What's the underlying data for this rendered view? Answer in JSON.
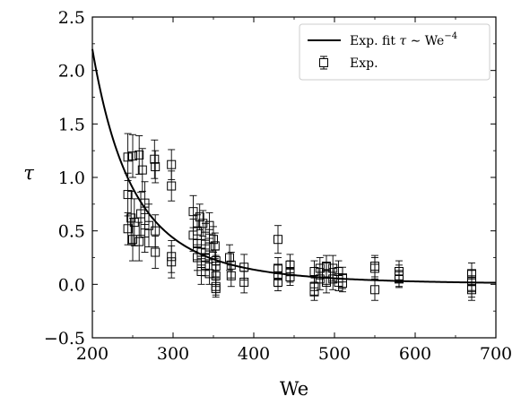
{
  "chart_data": {
    "type": "scatter",
    "title": "",
    "xlabel": "We",
    "ylabel": "τ",
    "xlim": [
      200,
      700
    ],
    "ylim": [
      -0.5,
      2.5
    ],
    "xticks": [
      200,
      300,
      400,
      500,
      600,
      700
    ],
    "yticks": [
      -0.5,
      0.0,
      0.5,
      1.0,
      1.5,
      2.0,
      2.5
    ],
    "xtick_labels": [
      "200",
      "300",
      "400",
      "500",
      "600",
      "700"
    ],
    "ytick_labels": [
      "−0.5",
      "0.0",
      "0.5",
      "1.0",
      "1.5",
      "2.0",
      "2.5"
    ],
    "grid": false,
    "legend_position": "top-right",
    "legend": [
      {
        "label_main": "Exp. fit ",
        "label_tau": "τ",
        "label_sim": " ∼ We",
        "label_exp": "−4",
        "kind": "line"
      },
      {
        "label": "Exp.",
        "kind": "errorbar-square"
      }
    ],
    "fit_curve": {
      "name": "Exp. fit",
      "formula": "tau = 2.2 * (We/200)^-4",
      "coefficient": 2.2,
      "exponent": -4,
      "color": "#000000"
    },
    "series": [
      {
        "name": "Exp.",
        "marker": "open-square",
        "color": "#000000",
        "points": [
          {
            "x": 244,
            "y": 1.19,
            "err": 0.22
          },
          {
            "x": 250,
            "y": 1.2,
            "err": 0.2
          },
          {
            "x": 258,
            "y": 1.21,
            "err": 0.18
          },
          {
            "x": 262,
            "y": 1.07,
            "err": 0.2
          },
          {
            "x": 277,
            "y": 1.17,
            "err": 0.18
          },
          {
            "x": 278,
            "y": 1.1,
            "err": 0.15
          },
          {
            "x": 298,
            "y": 1.12,
            "err": 0.14
          },
          {
            "x": 298,
            "y": 0.92,
            "err": 0.14
          },
          {
            "x": 244,
            "y": 0.84,
            "err": 0.2
          },
          {
            "x": 248,
            "y": 0.62,
            "err": 0.25
          },
          {
            "x": 252,
            "y": 0.58,
            "err": 0.22
          },
          {
            "x": 260,
            "y": 0.66,
            "err": 0.2
          },
          {
            "x": 265,
            "y": 0.76,
            "err": 0.2
          },
          {
            "x": 270,
            "y": 0.55,
            "err": 0.2
          },
          {
            "x": 244,
            "y": 0.52,
            "err": 0.15
          },
          {
            "x": 250,
            "y": 0.42,
            "err": 0.2
          },
          {
            "x": 258,
            "y": 0.4,
            "err": 0.18
          },
          {
            "x": 265,
            "y": 0.48,
            "err": 0.18
          },
          {
            "x": 278,
            "y": 0.5,
            "err": 0.15
          },
          {
            "x": 278,
            "y": 0.3,
            "err": 0.15
          },
          {
            "x": 298,
            "y": 0.26,
            "err": 0.15
          },
          {
            "x": 298,
            "y": 0.21,
            "err": 0.15
          },
          {
            "x": 325,
            "y": 0.68,
            "err": 0.15
          },
          {
            "x": 330,
            "y": 0.5,
            "err": 0.15
          },
          {
            "x": 333,
            "y": 0.63,
            "err": 0.12
          },
          {
            "x": 337,
            "y": 0.57,
            "err": 0.12
          },
          {
            "x": 340,
            "y": 0.45,
            "err": 0.12
          },
          {
            "x": 345,
            "y": 0.55,
            "err": 0.12
          },
          {
            "x": 325,
            "y": 0.46,
            "err": 0.15
          },
          {
            "x": 330,
            "y": 0.38,
            "err": 0.15
          },
          {
            "x": 335,
            "y": 0.3,
            "err": 0.12
          },
          {
            "x": 340,
            "y": 0.25,
            "err": 0.12
          },
          {
            "x": 345,
            "y": 0.35,
            "err": 0.12
          },
          {
            "x": 350,
            "y": 0.42,
            "err": 0.12
          },
          {
            "x": 352,
            "y": 0.36,
            "err": 0.12
          },
          {
            "x": 353,
            "y": 0.22,
            "err": 0.1
          },
          {
            "x": 353,
            "y": 0.17,
            "err": 0.1
          },
          {
            "x": 353,
            "y": 0.08,
            "err": 0.1
          },
          {
            "x": 353,
            "y": -0.02,
            "err": 0.08
          },
          {
            "x": 353,
            "y": -0.04,
            "err": 0.08
          },
          {
            "x": 330,
            "y": 0.25,
            "err": 0.12
          },
          {
            "x": 335,
            "y": 0.12,
            "err": 0.12
          },
          {
            "x": 340,
            "y": 0.18,
            "err": 0.1
          },
          {
            "x": 345,
            "y": 0.1,
            "err": 0.1
          },
          {
            "x": 370,
            "y": 0.25,
            "err": 0.12
          },
          {
            "x": 372,
            "y": 0.18,
            "err": 0.12
          },
          {
            "x": 372,
            "y": 0.08,
            "err": 0.1
          },
          {
            "x": 388,
            "y": 0.16,
            "err": 0.12
          },
          {
            "x": 388,
            "y": 0.02,
            "err": 0.1
          },
          {
            "x": 430,
            "y": 0.42,
            "err": 0.13
          },
          {
            "x": 430,
            "y": 0.15,
            "err": 0.1
          },
          {
            "x": 430,
            "y": 0.08,
            "err": 0.1
          },
          {
            "x": 430,
            "y": 0.02,
            "err": 0.08
          },
          {
            "x": 445,
            "y": 0.18,
            "err": 0.1
          },
          {
            "x": 445,
            "y": 0.12,
            "err": 0.1
          },
          {
            "x": 445,
            "y": 0.07,
            "err": 0.08
          },
          {
            "x": 475,
            "y": 0.12,
            "err": 0.1
          },
          {
            "x": 475,
            "y": -0.02,
            "err": 0.08
          },
          {
            "x": 475,
            "y": -0.07,
            "err": 0.08
          },
          {
            "x": 482,
            "y": 0.15,
            "err": 0.1
          },
          {
            "x": 482,
            "y": 0.05,
            "err": 0.1
          },
          {
            "x": 490,
            "y": 0.17,
            "err": 0.1
          },
          {
            "x": 490,
            "y": 0.1,
            "err": 0.1
          },
          {
            "x": 490,
            "y": 0.02,
            "err": 0.1
          },
          {
            "x": 498,
            "y": 0.15,
            "err": 0.12
          },
          {
            "x": 498,
            "y": 0.05,
            "err": 0.1
          },
          {
            "x": 505,
            "y": 0.12,
            "err": 0.1
          },
          {
            "x": 505,
            "y": 0.02,
            "err": 0.08
          },
          {
            "x": 510,
            "y": 0.06,
            "err": 0.1
          },
          {
            "x": 510,
            "y": 0.01,
            "err": 0.08
          },
          {
            "x": 550,
            "y": 0.17,
            "err": 0.1
          },
          {
            "x": 550,
            "y": 0.15,
            "err": 0.1
          },
          {
            "x": 550,
            "y": -0.05,
            "err": 0.1
          },
          {
            "x": 580,
            "y": 0.12,
            "err": 0.1
          },
          {
            "x": 580,
            "y": 0.08,
            "err": 0.1
          },
          {
            "x": 580,
            "y": 0.05,
            "err": 0.08
          },
          {
            "x": 670,
            "y": 0.1,
            "err": 0.1
          },
          {
            "x": 670,
            "y": 0.03,
            "err": 0.1
          },
          {
            "x": 670,
            "y": -0.02,
            "err": 0.1
          },
          {
            "x": 670,
            "y": -0.05,
            "err": 0.1
          }
        ]
      }
    ]
  }
}
